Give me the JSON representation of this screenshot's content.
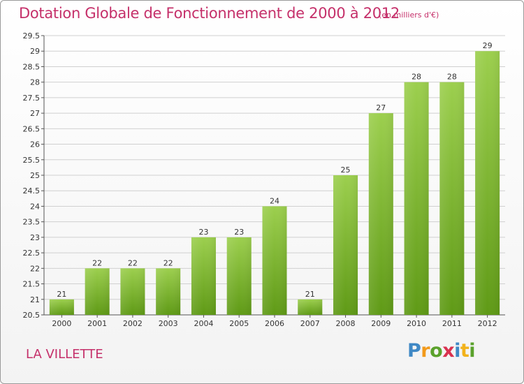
{
  "header": {
    "title": "Dotation Globale de Fonctionnement de 2000 à 2012",
    "unit": "(en milliers d'€)"
  },
  "footer": {
    "commune": "LA VILLETTE",
    "logo": "Proxiti"
  },
  "colors": {
    "title": "#c5306a",
    "bar_top": "#9ccf4e",
    "bar_bottom": "#5f9a16",
    "grid": "#d0d0d0"
  },
  "chart_data": {
    "type": "bar",
    "title": "Dotation Globale de Fonctionnement de 2000 à 2012",
    "subtitle": "(en milliers d'€)",
    "xlabel": "",
    "ylabel": "",
    "categories": [
      "2000",
      "2001",
      "2002",
      "2003",
      "2004",
      "2005",
      "2006",
      "2007",
      "2008",
      "2009",
      "2010",
      "2011",
      "2012"
    ],
    "values": [
      21,
      22,
      22,
      22,
      23,
      23,
      24,
      21,
      25,
      27,
      28,
      28,
      29
    ],
    "value_labels": [
      "21",
      "22",
      "22",
      "22",
      "23",
      "23",
      "24",
      "21",
      "25",
      "27",
      "28",
      "28",
      "29"
    ],
    "ylim": [
      20.5,
      29.5
    ],
    "yticks": [
      "20.5",
      "21",
      "21.5",
      "22",
      "22.5",
      "23",
      "23.5",
      "24",
      "24.5",
      "25",
      "25.5",
      "26",
      "26.5",
      "27",
      "27.5",
      "28",
      "28.5",
      "29",
      "29.5"
    ],
    "grid": true,
    "legend": "none"
  }
}
